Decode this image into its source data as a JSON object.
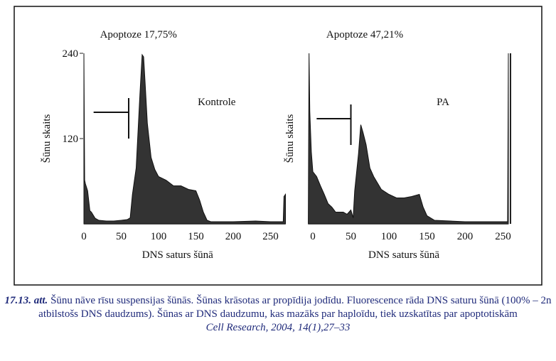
{
  "chart_data": [
    {
      "type": "area",
      "title": "Apoptoze 17,75%",
      "label": "Kontrole",
      "xlabel": "DNS saturs šūnā",
      "ylabel": "Šūnu skaits",
      "xlim": [
        0,
        270
      ],
      "ylim": [
        0,
        240
      ],
      "x_ticks": [
        "0",
        "50",
        "100",
        "150",
        "200",
        "250"
      ],
      "y_ticks": [
        "240",
        "120"
      ],
      "marker_range": [
        13,
        60
      ],
      "x": [
        0,
        1,
        2,
        5,
        8,
        10,
        15,
        20,
        30,
        40,
        50,
        58,
        62,
        65,
        70,
        75,
        78,
        80,
        82,
        85,
        90,
        95,
        100,
        110,
        120,
        130,
        140,
        150,
        155,
        160,
        165,
        170,
        200,
        230,
        250,
        267,
        268,
        270
      ],
      "y": [
        240,
        60,
        58,
        45,
        20,
        15,
        8,
        5,
        4,
        4,
        5,
        6,
        10,
        40,
        80,
        180,
        238,
        235,
        200,
        140,
        95,
        75,
        68,
        60,
        55,
        52,
        50,
        45,
        35,
        15,
        5,
        3,
        3,
        4,
        3,
        3,
        40,
        40
      ]
    },
    {
      "type": "area",
      "title": "Apoptoze 47,21%",
      "label": "PA",
      "xlabel": "DNS saturs šūnā",
      "ylabel": "Šūnu skaits",
      "xlim": [
        0,
        258
      ],
      "ylim": [
        0,
        240
      ],
      "x_ticks": [
        "0",
        "50",
        "100",
        "150",
        "200",
        "250"
      ],
      "marker_range": [
        5,
        50
      ],
      "x": [
        -6,
        -5,
        -4,
        -2,
        0,
        5,
        10,
        15,
        20,
        25,
        30,
        40,
        45,
        50,
        53,
        55,
        60,
        63,
        66,
        70,
        75,
        80,
        90,
        100,
        110,
        120,
        130,
        140,
        145,
        150,
        160,
        200,
        250,
        256,
        257
      ],
      "y": [
        0,
        240,
        160,
        100,
        75,
        65,
        55,
        40,
        30,
        22,
        18,
        15,
        15,
        18,
        10,
        45,
        100,
        138,
        130,
        110,
        80,
        65,
        50,
        40,
        38,
        35,
        40,
        40,
        25,
        10,
        5,
        3,
        3,
        3,
        240
      ]
    }
  ],
  "caption": {
    "number": "17.13. att.",
    "text": "Šūnu nāve rīsu suspensijas šūnās. Šūnas krāsotas ar propīdija jodīdu. Fluorescence rāda DNS saturu šūnā (100% – 2n atbilstošs DNS daudzums). Šūnas ar DNS daudzumu, kas mazāks par haploīdu, tiek uzskatītas par apoptotiskām",
    "source": "Cell Research, 2004, 14(1),27–33"
  },
  "colors": {
    "fill": "#333333",
    "caption": "#1f2a7a"
  }
}
